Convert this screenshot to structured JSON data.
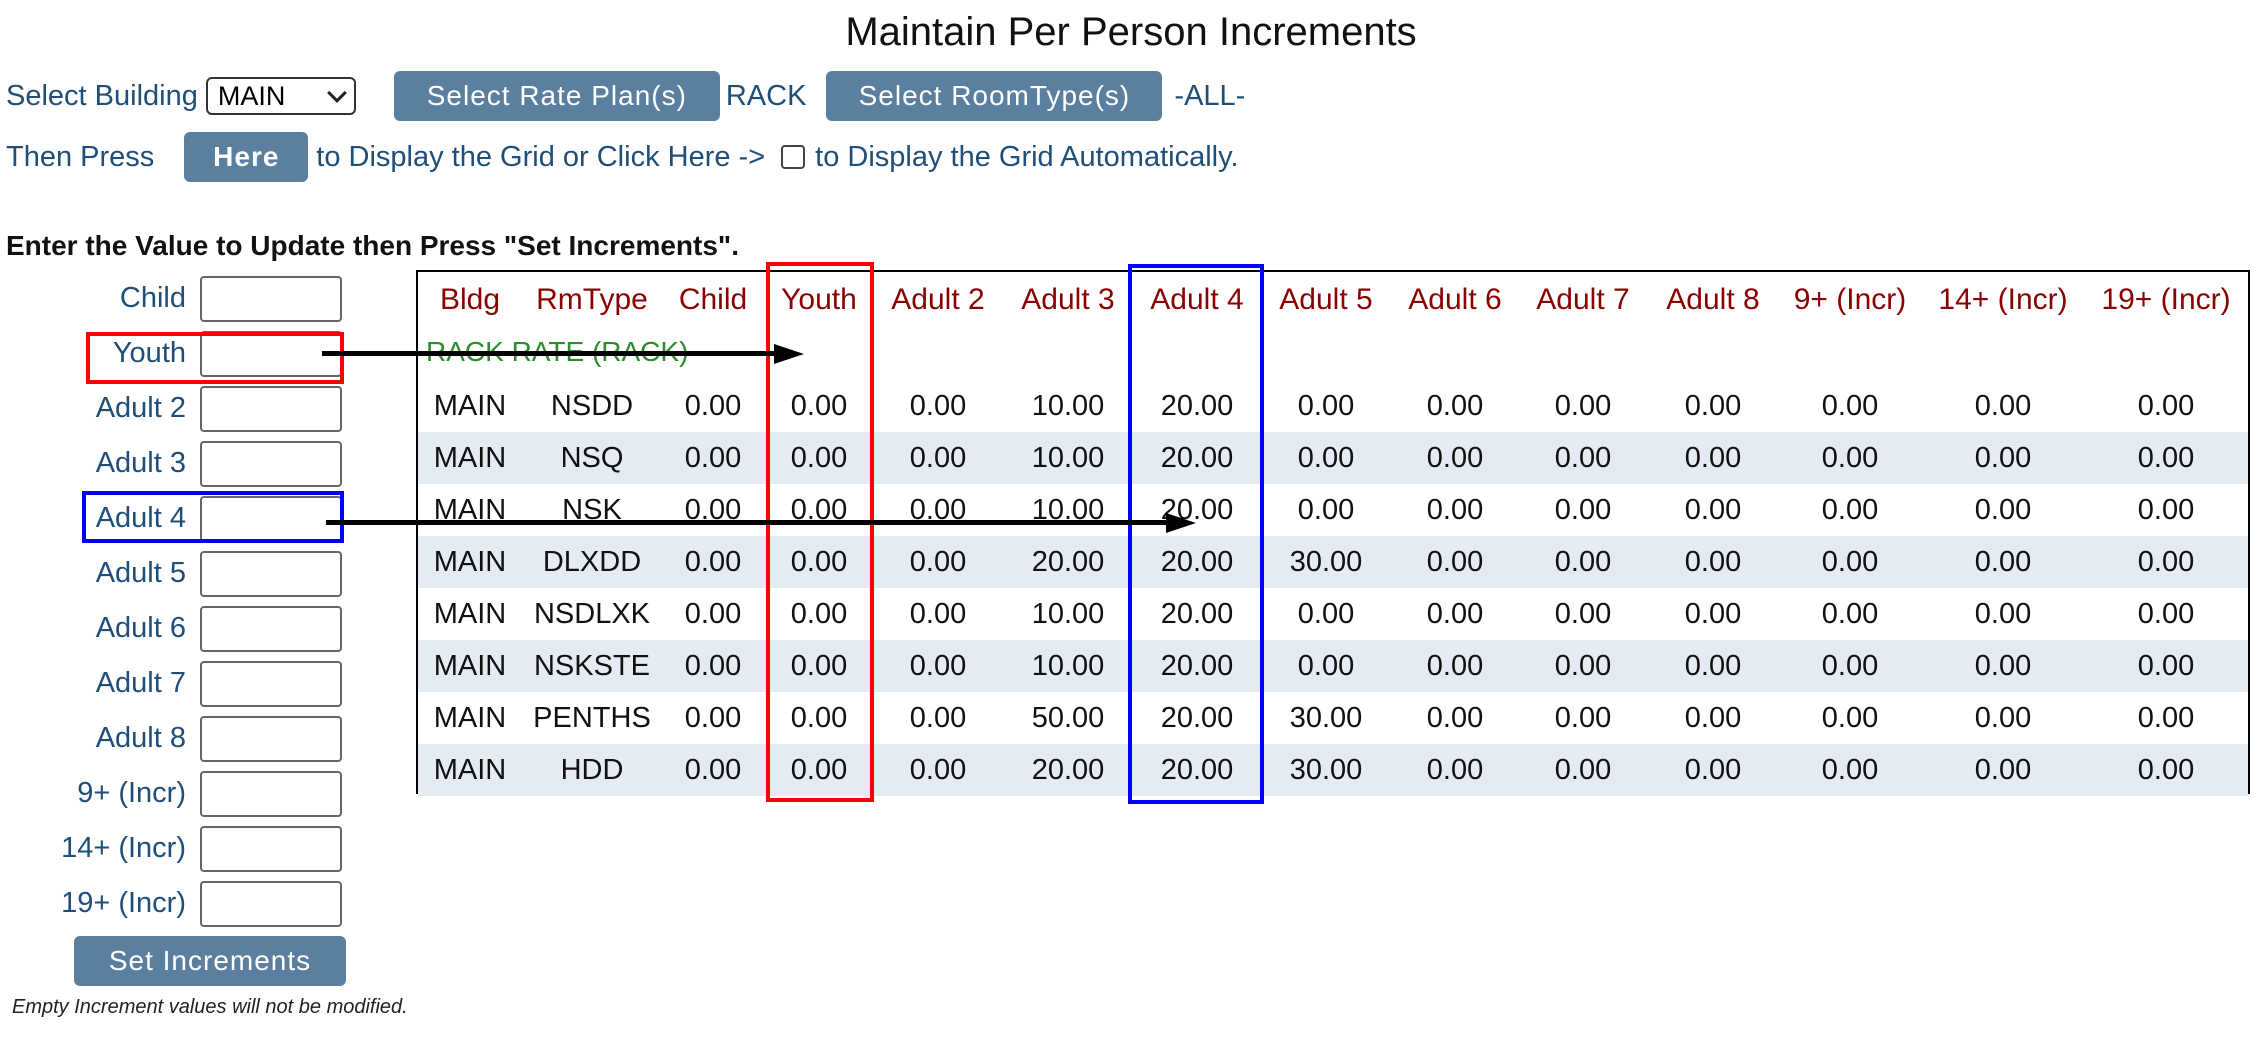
{
  "page": {
    "title": "Maintain Per Person Increments"
  },
  "controls": {
    "building_label": "Select Building",
    "building_value": "MAIN",
    "rate_plan_button": "Select Rate Plan(s)",
    "rate_plan_value": "RACK",
    "roomtype_button": "Select RoomType(s)",
    "roomtype_value": "-ALL-",
    "then_press": "Then Press",
    "here_button": "Here",
    "display_text": "to Display the Grid or Click Here ->",
    "auto_text": "to Display the Grid Automatically.",
    "auto_checked": false
  },
  "increments": {
    "instruction": "Enter the Value to Update then Press \"Set Increments\".",
    "fields": [
      {
        "label": "Child",
        "value": ""
      },
      {
        "label": "Youth",
        "value": ""
      },
      {
        "label": "Adult 2",
        "value": ""
      },
      {
        "label": "Adult 3",
        "value": ""
      },
      {
        "label": "Adult 4",
        "value": ""
      },
      {
        "label": "Adult 5",
        "value": ""
      },
      {
        "label": "Adult 6",
        "value": ""
      },
      {
        "label": "Adult 7",
        "value": ""
      },
      {
        "label": "Adult 8",
        "value": ""
      },
      {
        "label": "9+ (Incr)",
        "value": ""
      },
      {
        "label": "14+ (Incr)",
        "value": ""
      },
      {
        "label": "19+ (Incr)",
        "value": ""
      }
    ],
    "set_button": "Set Increments",
    "footnote": "Empty Increment values will not be modified."
  },
  "grid": {
    "headers": [
      "Bldg",
      "RmType",
      "Child",
      "Youth",
      "Adult 2",
      "Adult 3",
      "Adult 4",
      "Adult 5",
      "Adult 6",
      "Adult 7",
      "Adult 8",
      "9+ (Incr)",
      "14+ (Incr)",
      "19+ (Incr)"
    ],
    "rate_plan": "RACK RATE (RACK)",
    "rows": [
      [
        "MAIN",
        "NSDD",
        "0.00",
        "0.00",
        "0.00",
        "10.00",
        "20.00",
        "0.00",
        "0.00",
        "0.00",
        "0.00",
        "0.00",
        "0.00",
        "0.00"
      ],
      [
        "MAIN",
        "NSQ",
        "0.00",
        "0.00",
        "0.00",
        "10.00",
        "20.00",
        "0.00",
        "0.00",
        "0.00",
        "0.00",
        "0.00",
        "0.00",
        "0.00"
      ],
      [
        "MAIN",
        "NSK",
        "0.00",
        "0.00",
        "0.00",
        "10.00",
        "20.00",
        "0.00",
        "0.00",
        "0.00",
        "0.00",
        "0.00",
        "0.00",
        "0.00"
      ],
      [
        "MAIN",
        "DLXDD",
        "0.00",
        "0.00",
        "0.00",
        "20.00",
        "20.00",
        "30.00",
        "0.00",
        "0.00",
        "0.00",
        "0.00",
        "0.00",
        "0.00"
      ],
      [
        "MAIN",
        "NSDLXK",
        "0.00",
        "0.00",
        "0.00",
        "10.00",
        "20.00",
        "0.00",
        "0.00",
        "0.00",
        "0.00",
        "0.00",
        "0.00",
        "0.00"
      ],
      [
        "MAIN",
        "NSKSTE",
        "0.00",
        "0.00",
        "0.00",
        "10.00",
        "20.00",
        "0.00",
        "0.00",
        "0.00",
        "0.00",
        "0.00",
        "0.00",
        "0.00"
      ],
      [
        "MAIN",
        "PENTHS",
        "0.00",
        "0.00",
        "0.00",
        "50.00",
        "20.00",
        "30.00",
        "0.00",
        "0.00",
        "0.00",
        "0.00",
        "0.00",
        "0.00"
      ],
      [
        "MAIN",
        "HDD",
        "0.00",
        "0.00",
        "0.00",
        "20.00",
        "20.00",
        "30.00",
        "0.00",
        "0.00",
        "0.00",
        "0.00",
        "0.00",
        "0.00"
      ]
    ]
  },
  "annotations": {
    "highlight_colors": [
      "#ff0000",
      "#0000ff"
    ]
  }
}
